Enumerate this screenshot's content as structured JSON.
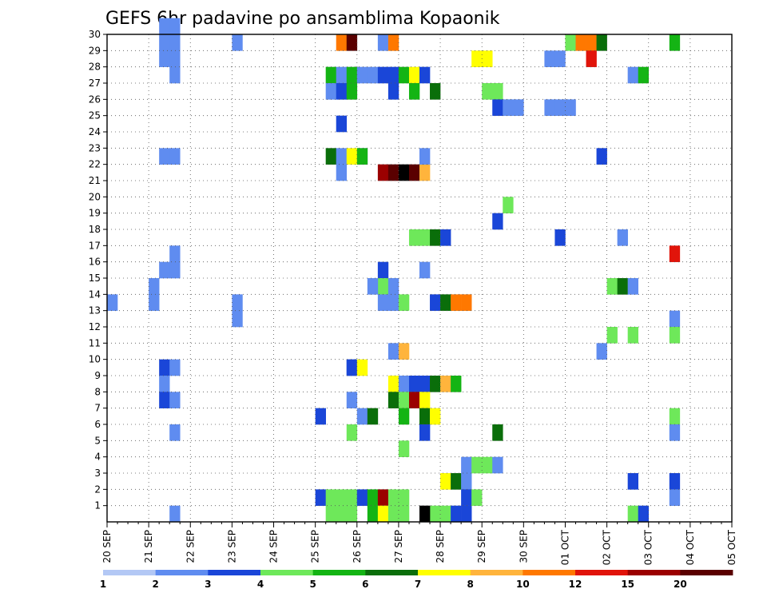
{
  "chart_data": {
    "type": "heatmap",
    "title": "GEFS 6hr padavine po ansamblima Kopaonik",
    "y_ticks": [
      "1",
      "2",
      "3",
      "4",
      "5",
      "6",
      "7",
      "8",
      "9",
      "10",
      "11",
      "12",
      "13",
      "14",
      "15",
      "16",
      "17",
      "18",
      "19",
      "20",
      "21",
      "22",
      "23",
      "24",
      "25",
      "26",
      "27",
      "28",
      "29",
      "30"
    ],
    "x_ticks": [
      "20 SEP",
      "21 SEP",
      "22 SEP",
      "23 SEP",
      "24 SEP",
      "25 SEP",
      "26 SEP",
      "27 SEP",
      "28 SEP",
      "29 SEP",
      "30 SEP",
      "01 OCT",
      "02 OCT",
      "03 OCT",
      "04 OCT",
      "05 OCT"
    ],
    "legend_labels": [
      "1",
      "2",
      "3",
      "4",
      "5",
      "6",
      "7",
      "8",
      "10",
      "12",
      "15",
      "20"
    ],
    "colors": [
      "#b3c8f5",
      "#5f8cf0",
      "#1a46d8",
      "#6ee85a",
      "#14b414",
      "#0a6e0a",
      "#ffff00",
      "#ffb43c",
      "#ff7800",
      "#e1140a",
      "#9b0000",
      "#5a0000"
    ],
    "time_unit": "6h steps since 20 SEP 00Z",
    "cells": [
      [
        0,
        13,
        1
      ],
      [
        5,
        29,
        1
      ],
      [
        5,
        30,
        1
      ],
      [
        5,
        22,
        1
      ],
      [
        5,
        15,
        1
      ],
      [
        5,
        9,
        2
      ],
      [
        5,
        8,
        1
      ],
      [
        5,
        7,
        2
      ],
      [
        5,
        28,
        1
      ],
      [
        6,
        30,
        1
      ],
      [
        6,
        29,
        1
      ],
      [
        6,
        28,
        1
      ],
      [
        6,
        27,
        1
      ],
      [
        6,
        22,
        1
      ],
      [
        6,
        9,
        1
      ],
      [
        6,
        7,
        1
      ],
      [
        6,
        5,
        1
      ],
      [
        6,
        16,
        1
      ],
      [
        6,
        15,
        1
      ],
      [
        6,
        0,
        1
      ],
      [
        4,
        14,
        1
      ],
      [
        4,
        13,
        1
      ],
      [
        12,
        29,
        1
      ],
      [
        12,
        12,
        1
      ],
      [
        12,
        13,
        1
      ],
      [
        20,
        1,
        2
      ],
      [
        20,
        6,
        2
      ],
      [
        21,
        1,
        3
      ],
      [
        21,
        0,
        3
      ],
      [
        22,
        1,
        3
      ],
      [
        22,
        0,
        3
      ],
      [
        23,
        1,
        3
      ],
      [
        23,
        0,
        3
      ],
      [
        23,
        7,
        1
      ],
      [
        23,
        9,
        1
      ],
      [
        24,
        1,
        2
      ],
      [
        24,
        6,
        1
      ],
      [
        24,
        22,
        1
      ],
      [
        25,
        1,
        4
      ],
      [
        25,
        0,
        4
      ],
      [
        26,
        1,
        10
      ],
      [
        26,
        0,
        6
      ],
      [
        27,
        1,
        3
      ],
      [
        27,
        0,
        3
      ],
      [
        28,
        1,
        3
      ],
      [
        28,
        0,
        3
      ],
      [
        21,
        27,
        4
      ],
      [
        21,
        26,
        1
      ],
      [
        21,
        22,
        5
      ],
      [
        22,
        22,
        1
      ],
      [
        22,
        29,
        8
      ],
      [
        23,
        29,
        11
      ],
      [
        22,
        27,
        1
      ],
      [
        22,
        26,
        2
      ],
      [
        22,
        24,
        2
      ],
      [
        22,
        21,
        1
      ],
      [
        23,
        22,
        6
      ],
      [
        23,
        26,
        4
      ],
      [
        24,
        22,
        4
      ],
      [
        23,
        27,
        4
      ],
      [
        24,
        27,
        1
      ],
      [
        25,
        27,
        1
      ],
      [
        26,
        27,
        2
      ],
      [
        27,
        27,
        2
      ],
      [
        27,
        26,
        2
      ],
      [
        28,
        27,
        4
      ],
      [
        29,
        27,
        6
      ],
      [
        29,
        26,
        4
      ],
      [
        30,
        27,
        2
      ],
      [
        26,
        29,
        1
      ],
      [
        27,
        29,
        8
      ],
      [
        23,
        9,
        2
      ],
      [
        24,
        9,
        6
      ],
      [
        23,
        5,
        3
      ],
      [
        25,
        6,
        5
      ],
      [
        26,
        21,
        10
      ],
      [
        27,
        21,
        11
      ],
      [
        28,
        21,
        12
      ],
      [
        29,
        21,
        11
      ],
      [
        30,
        21,
        7
      ],
      [
        26,
        15,
        2
      ],
      [
        26,
        14,
        3
      ],
      [
        26,
        13,
        1
      ],
      [
        25,
        14,
        1
      ],
      [
        27,
        14,
        1
      ],
      [
        27,
        13,
        1
      ],
      [
        27,
        10,
        1
      ],
      [
        28,
        10,
        7
      ],
      [
        28,
        13,
        3
      ],
      [
        27,
        8,
        6
      ],
      [
        28,
        8,
        1
      ],
      [
        29,
        8,
        2
      ],
      [
        30,
        8,
        2
      ],
      [
        31,
        8,
        5
      ],
      [
        32,
        8,
        7
      ],
      [
        33,
        8,
        4
      ],
      [
        27,
        7,
        5
      ],
      [
        28,
        7,
        3
      ],
      [
        29,
        7,
        10
      ],
      [
        30,
        7,
        6
      ],
      [
        28,
        6,
        4
      ],
      [
        28,
        4,
        3
      ],
      [
        30,
        6,
        5
      ],
      [
        31,
        6,
        6
      ],
      [
        30,
        5,
        2
      ],
      [
        31,
        0,
        3
      ],
      [
        30,
        0,
        12
      ],
      [
        32,
        0,
        3
      ],
      [
        33,
        0,
        2
      ],
      [
        30,
        17,
        3
      ],
      [
        29,
        17,
        3
      ],
      [
        31,
        17,
        5
      ],
      [
        32,
        17,
        2
      ],
      [
        30,
        22,
        1
      ],
      [
        30,
        15,
        1
      ],
      [
        31,
        13,
        2
      ],
      [
        32,
        13,
        5
      ],
      [
        33,
        13,
        8
      ],
      [
        34,
        13,
        8
      ],
      [
        31,
        26,
        5
      ],
      [
        34,
        3,
        1
      ],
      [
        35,
        3,
        3
      ],
      [
        36,
        3,
        3
      ],
      [
        37,
        3,
        1
      ],
      [
        32,
        2,
        6
      ],
      [
        33,
        2,
        5
      ],
      [
        34,
        2,
        1
      ],
      [
        34,
        1,
        2
      ],
      [
        34,
        0,
        2
      ],
      [
        35,
        1,
        3
      ],
      [
        36,
        26,
        3
      ],
      [
        37,
        26,
        3
      ],
      [
        37,
        25,
        2
      ],
      [
        38,
        25,
        1
      ],
      [
        39,
        25,
        1
      ],
      [
        35,
        28,
        6
      ],
      [
        36,
        28,
        6
      ],
      [
        37,
        18,
        2
      ],
      [
        38,
        19,
        3
      ],
      [
        37,
        5,
        5
      ],
      [
        42,
        28,
        1
      ],
      [
        43,
        28,
        1
      ],
      [
        42,
        25,
        1
      ],
      [
        43,
        25,
        1
      ],
      [
        44,
        25,
        1
      ],
      [
        43,
        17,
        2
      ],
      [
        44,
        29,
        3
      ],
      [
        45,
        29,
        8
      ],
      [
        46,
        29,
        8
      ],
      [
        46,
        28,
        9
      ],
      [
        47,
        29,
        5
      ],
      [
        47,
        22,
        2
      ],
      [
        47,
        10,
        1
      ],
      [
        48,
        14,
        3
      ],
      [
        48,
        11,
        3
      ],
      [
        49,
        14,
        5
      ],
      [
        50,
        14,
        1
      ],
      [
        50,
        11,
        3
      ],
      [
        49,
        17,
        1
      ],
      [
        50,
        27,
        1
      ],
      [
        51,
        27,
        4
      ],
      [
        50,
        2,
        2
      ],
      [
        50,
        0,
        3
      ],
      [
        51,
        0,
        2
      ],
      [
        54,
        29,
        4
      ],
      [
        54,
        16,
        9
      ],
      [
        54,
        12,
        1
      ],
      [
        54,
        11,
        3
      ],
      [
        54,
        6,
        3
      ],
      [
        54,
        5,
        1
      ],
      [
        54,
        2,
        2
      ],
      [
        54,
        1,
        1
      ]
    ]
  }
}
